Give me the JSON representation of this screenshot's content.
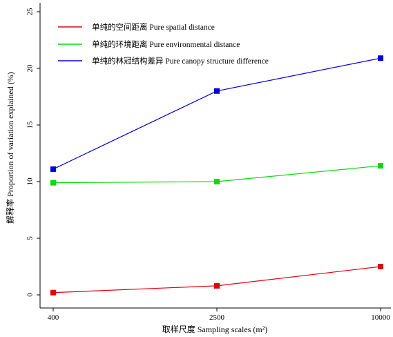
{
  "chart_data": {
    "type": "line",
    "x": [
      "400",
      "2500",
      "10000"
    ],
    "xlabel": "取样尺度 Sampling scales (m²)",
    "ylabel": "解释率 Proportion of variation explained (%)",
    "ylim": [
      0,
      25
    ],
    "yticks": [
      "0",
      "5",
      "10",
      "15",
      "20",
      "25"
    ],
    "grid": false,
    "legend_position": "top-left",
    "series": [
      {
        "name": "单纯的空间距离 Pure spatial distance",
        "color": "#e8000b",
        "values": [
          0.2,
          0.8,
          2.5
        ]
      },
      {
        "name": "单纯的环境距离 Pure environmental distance",
        "color": "#00e000",
        "values": [
          9.9,
          10.0,
          11.4
        ]
      },
      {
        "name": "单纯的林冠结构差异 Pure canopy structure difference",
        "color": "#0000e8",
        "values": [
          11.1,
          18.0,
          20.9
        ]
      }
    ]
  }
}
